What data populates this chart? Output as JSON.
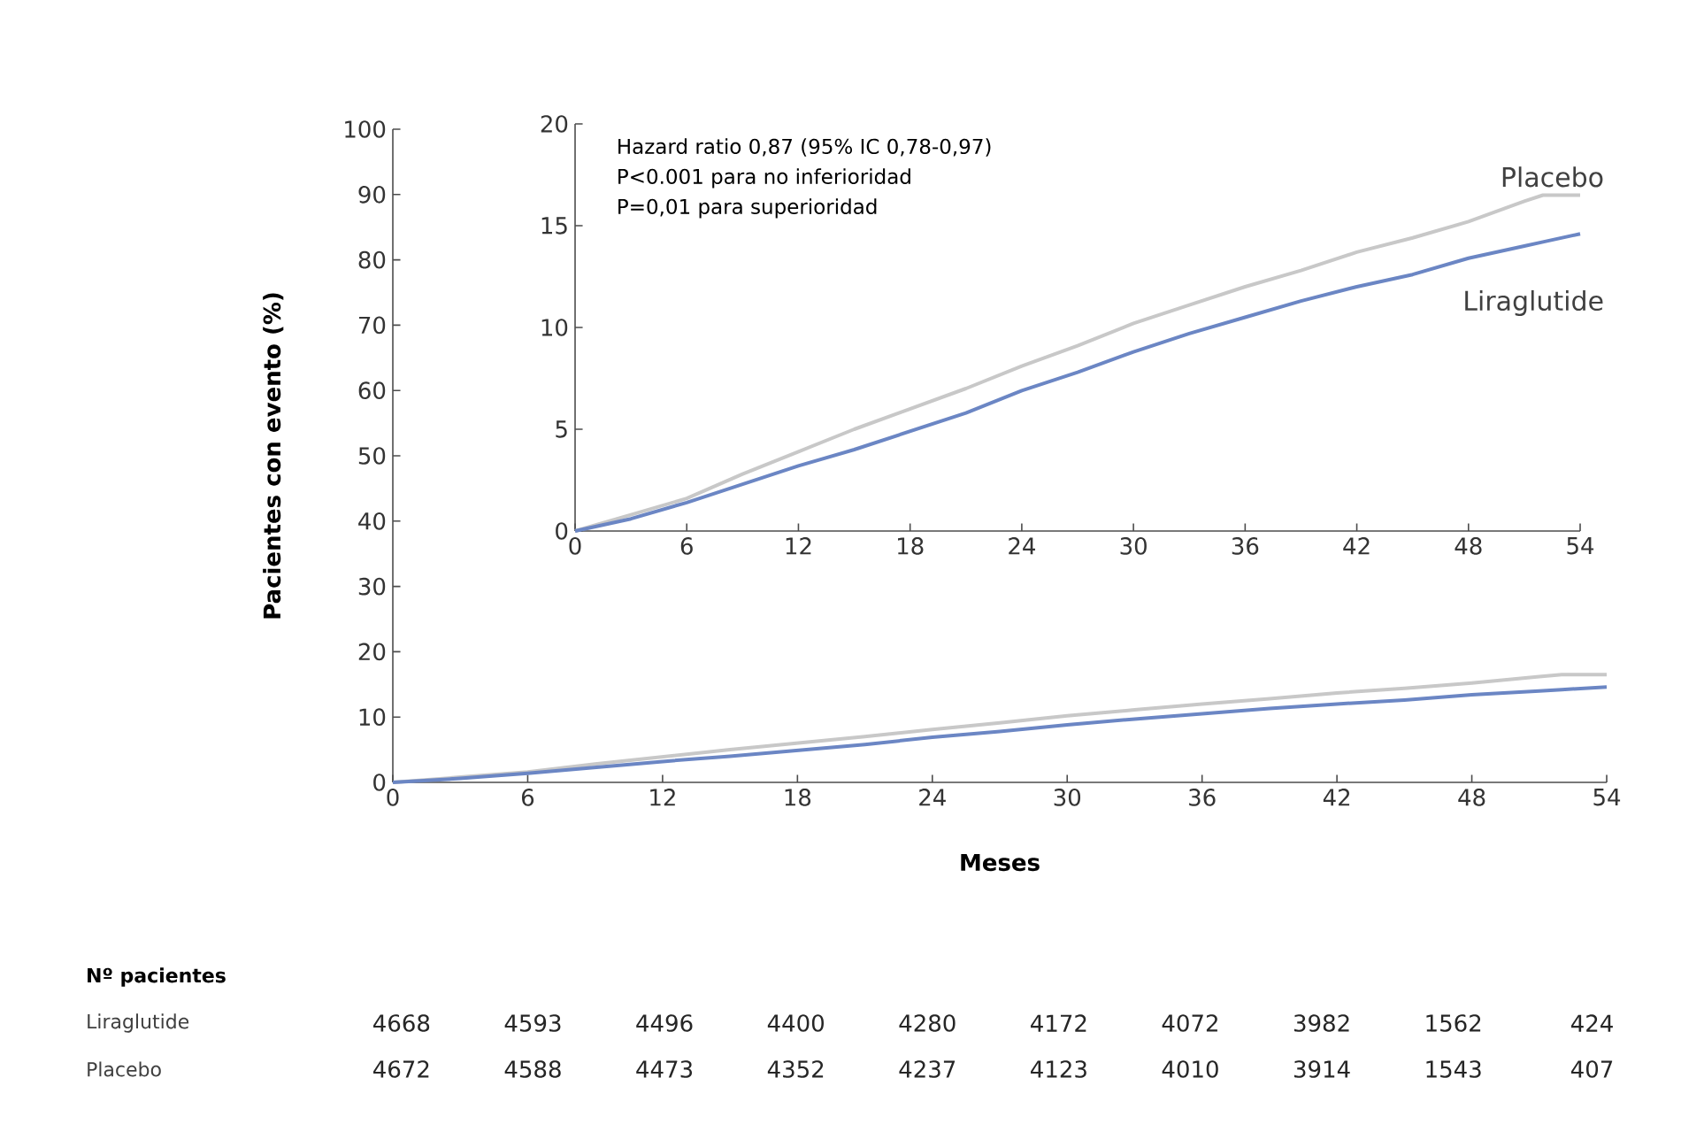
{
  "chart_data": [
    {
      "type": "line",
      "xlabel": "Meses",
      "ylabel": "Pacientes con evento (%)",
      "x": [
        0,
        3,
        6,
        9,
        12,
        15,
        18,
        21,
        24,
        27,
        30,
        33,
        36,
        39,
        42,
        45,
        48,
        51,
        52,
        54
      ],
      "series": [
        {
          "color": "#c8c8c8",
          "values": [
            0,
            0.8,
            1.6,
            2.8,
            3.9,
            5.0,
            6.0,
            7.0,
            8.1,
            9.1,
            10.2,
            11.1,
            12.0,
            12.8,
            13.7,
            14.4,
            15.2,
            16.2,
            16.5,
            16.5
          ]
        },
        {
          "color": "#6b86c4",
          "values": [
            0,
            0.6,
            1.4,
            2.3,
            3.2,
            4.0,
            4.9,
            5.8,
            6.9,
            7.8,
            8.8,
            9.7,
            10.5,
            11.3,
            12.0,
            12.6,
            13.4,
            14.0,
            14.2,
            14.6
          ]
        }
      ],
      "xlim": [
        0,
        54
      ],
      "xticks": [
        0,
        6,
        12,
        18,
        24,
        30,
        36,
        42,
        48,
        54
      ],
      "ylim": [
        0,
        100
      ],
      "yticks": [
        0,
        10,
        20,
        30,
        40,
        50,
        60,
        70,
        80,
        90,
        100
      ],
      "annotations": [
        "Nº pacientes",
        "Liraglutide",
        "4668",
        "4593",
        "4496",
        "4400",
        "4280",
        "4172",
        "4072",
        "3982",
        "1562",
        "424",
        "Placebo",
        "4672",
        "4588",
        "4473",
        "4352",
        "4237",
        "4123",
        "4010",
        "3914",
        "1543",
        "407"
      ]
    },
    {
      "type": "line",
      "x": [
        0,
        3,
        6,
        9,
        12,
        15,
        18,
        21,
        24,
        27,
        30,
        33,
        36,
        39,
        42,
        45,
        48,
        51,
        52,
        54
      ],
      "series": [
        {
          "name": "Placebo",
          "color": "#c8c8c8",
          "values": [
            0,
            0.8,
            1.6,
            2.8,
            3.9,
            5.0,
            6.0,
            7.0,
            8.1,
            9.1,
            10.2,
            11.1,
            12.0,
            12.8,
            13.7,
            14.4,
            15.2,
            16.2,
            16.5,
            16.5
          ]
        },
        {
          "name": "Liraglutide",
          "color": "#6b86c4",
          "values": [
            0,
            0.6,
            1.4,
            2.3,
            3.2,
            4.0,
            4.9,
            5.8,
            6.9,
            7.8,
            8.8,
            9.7,
            10.5,
            11.3,
            12.0,
            12.6,
            13.4,
            14.0,
            14.2,
            14.6
          ]
        }
      ],
      "xlim": [
        0,
        54
      ],
      "xticks": [
        0,
        6,
        12,
        18,
        24,
        30,
        36,
        42,
        48,
        54
      ],
      "ylim": [
        0,
        20
      ],
      "yticks": [
        0,
        5,
        10,
        15,
        20
      ],
      "annotations": [
        "Hazard ratio 0,87 (95% IC 0,78-0,97)",
        "P<0.001 para no inferioridad",
        "P=0,01 para superioridad"
      ]
    }
  ]
}
